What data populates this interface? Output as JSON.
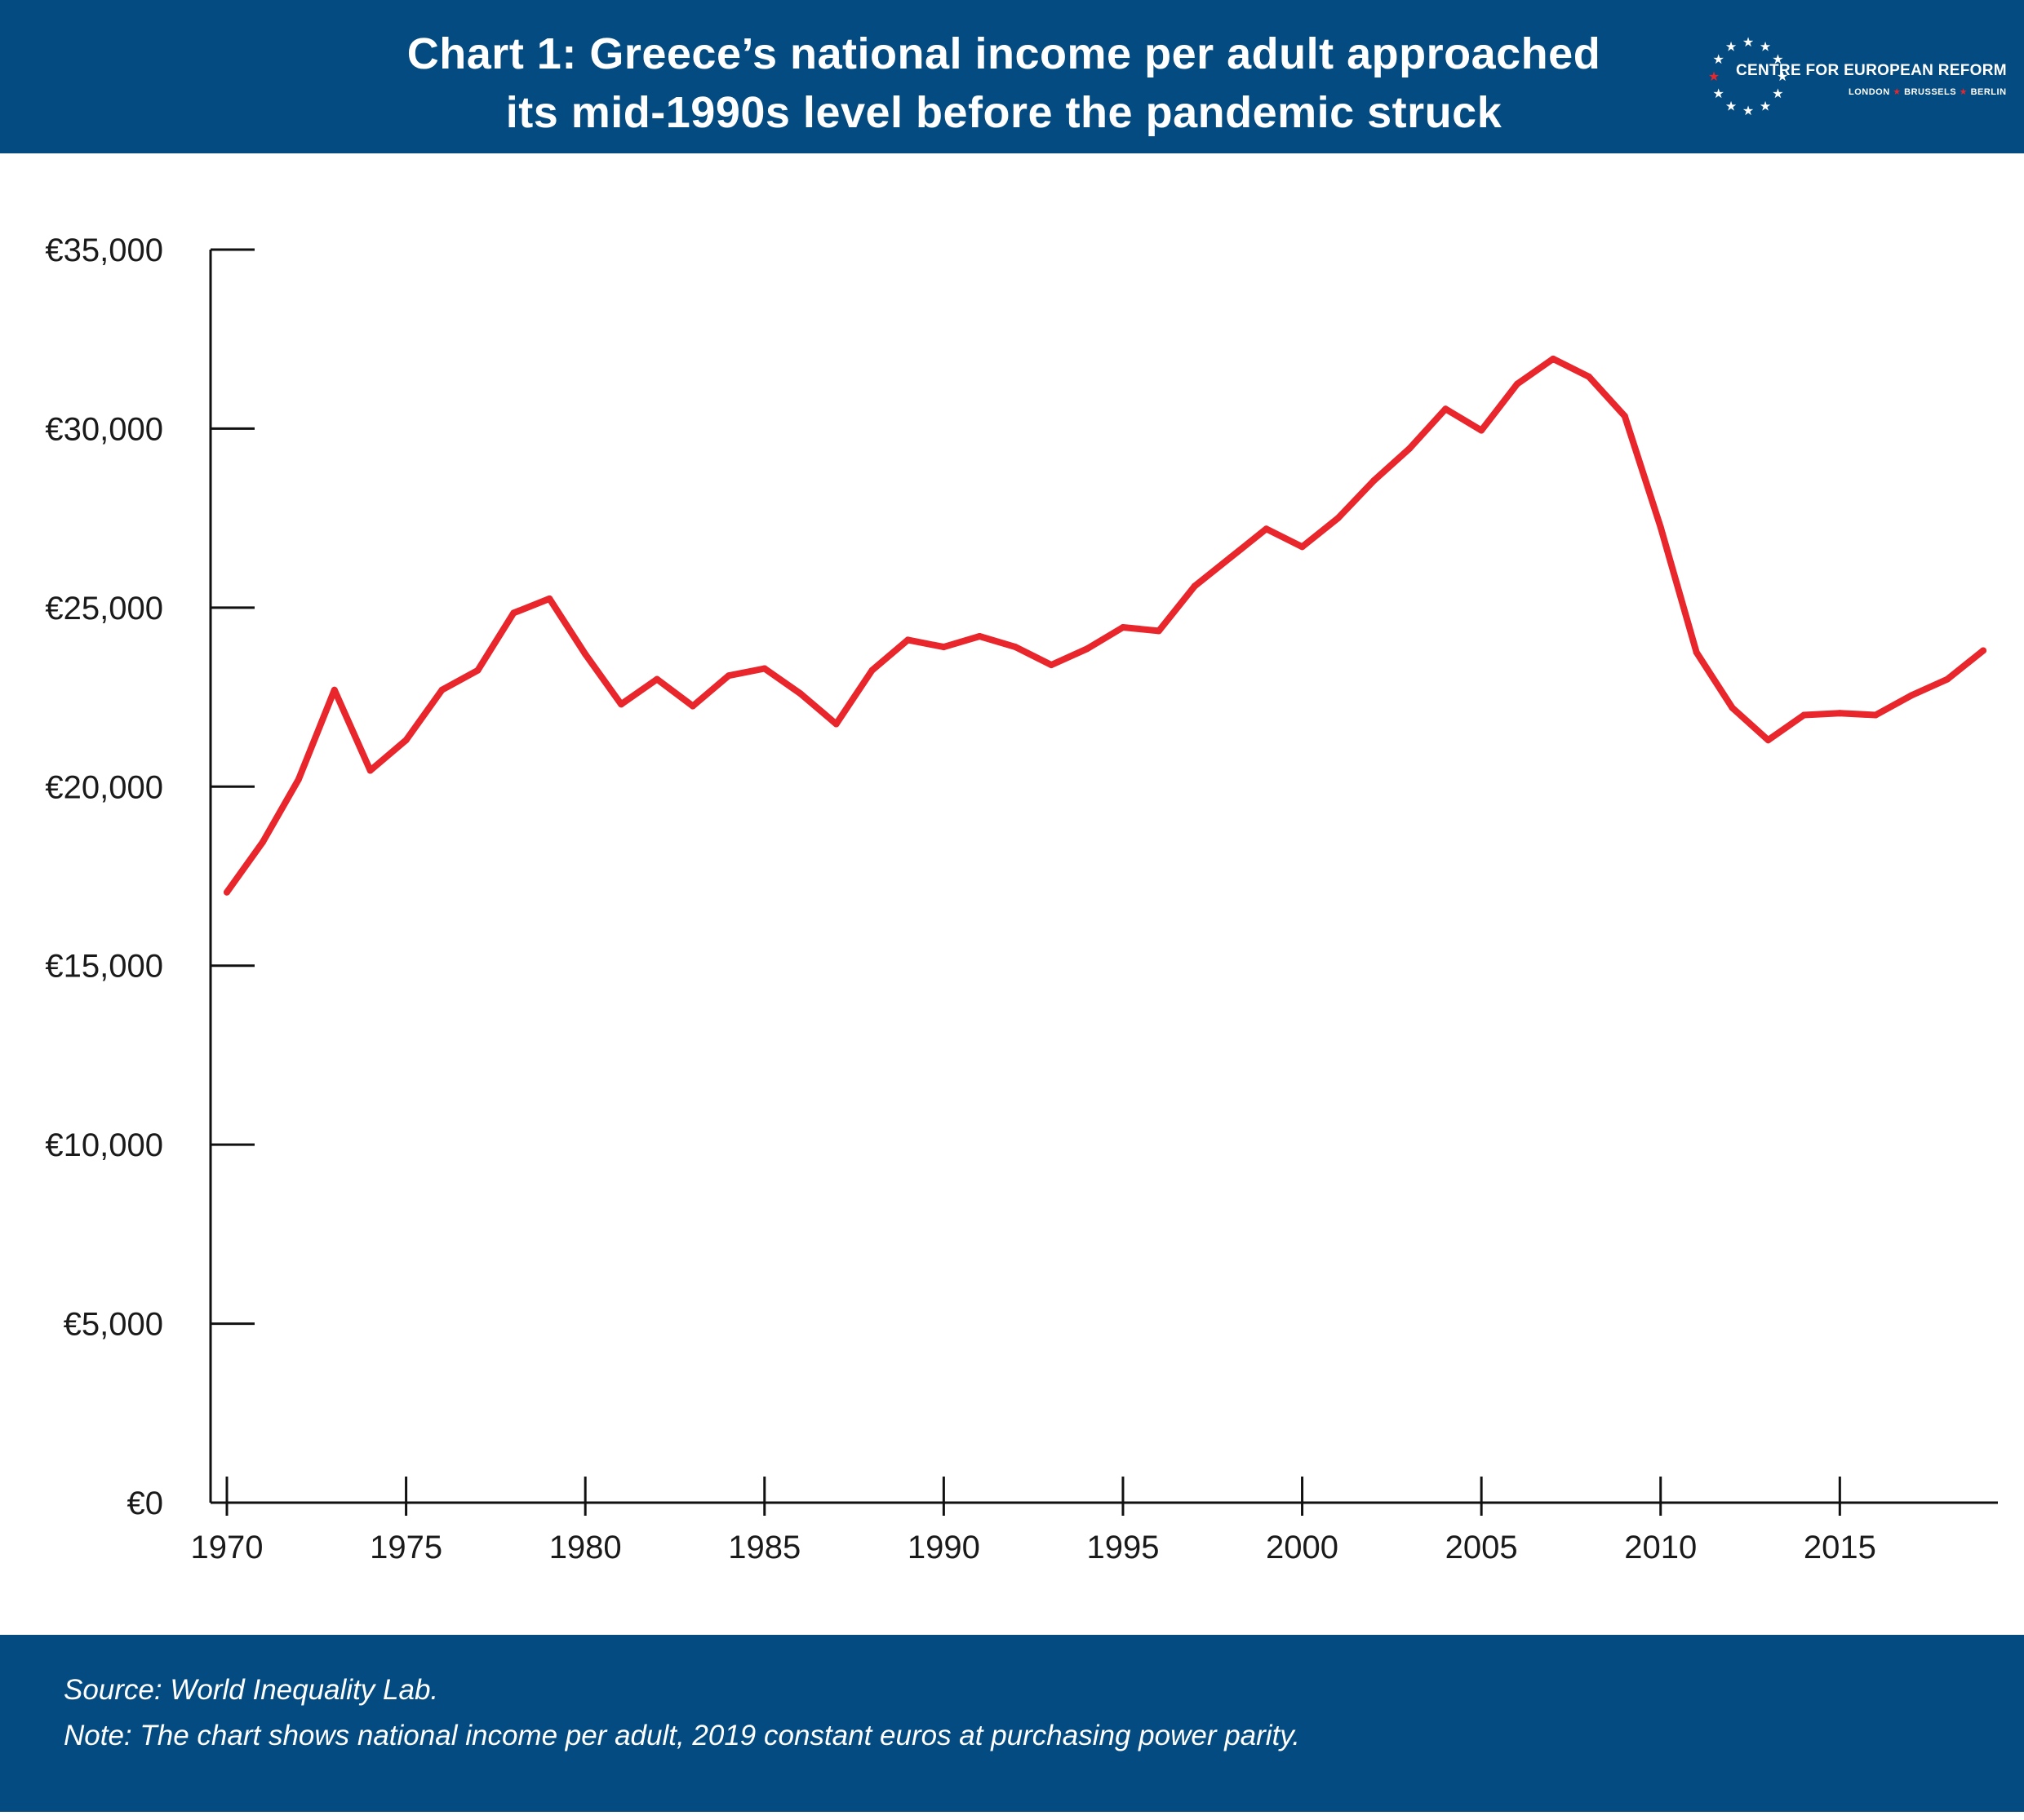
{
  "header": {
    "title_line1": "Chart 1: Greece’s national income per adult approached",
    "title_line2": "its mid-1990s level before the pandemic struck",
    "background_color": "#034b80"
  },
  "logo": {
    "name": "CENTRE FOR EUROPEAN REFORM",
    "city1": "LONDON",
    "city2": "BRUSSELS",
    "city3": "BERLIN",
    "star_color": "#ffffff",
    "accent_star_color": "#e8262b"
  },
  "footer": {
    "source": "Source: World Inequality Lab.",
    "note": "Note: The chart shows national income per adult, 2019 constant euros at purchasing power parity."
  },
  "chart_data": {
    "type": "line",
    "title": "Chart 1: Greece’s national income per adult approached its mid-1990s level before the pandemic struck",
    "xlabel": "",
    "ylabel": "",
    "x": [
      1970,
      1971,
      1972,
      1973,
      1974,
      1975,
      1976,
      1977,
      1978,
      1979,
      1980,
      1981,
      1982,
      1983,
      1984,
      1985,
      1986,
      1987,
      1988,
      1989,
      1990,
      1991,
      1992,
      1993,
      1994,
      1995,
      1996,
      1997,
      1998,
      1999,
      2000,
      2001,
      2002,
      2003,
      2004,
      2005,
      2006,
      2007,
      2008,
      2009,
      2010,
      2011,
      2012,
      2013,
      2014,
      2015,
      2016,
      2017,
      2018,
      2019
    ],
    "series": [
      {
        "color": "#e8262b",
        "values": [
          17050,
          18450,
          20200,
          22700,
          20450,
          21300,
          22700,
          23250,
          24850,
          25250,
          23700,
          22300,
          23000,
          22250,
          23100,
          23300,
          22600,
          21750,
          23250,
          24100,
          23900,
          24200,
          23900,
          23400,
          23850,
          24450,
          24350,
          25600,
          26400,
          27200,
          26700,
          27500,
          28550,
          29450,
          30550,
          29950,
          31250,
          31950,
          31450,
          30350,
          27250,
          23750,
          22200,
          21300,
          22000,
          22050,
          22000,
          22550,
          23000,
          23800
        ]
      }
    ],
    "xlim": [
      1970,
      2019
    ],
    "ylim": [
      0,
      35000
    ],
    "x_ticks": [
      1970,
      1975,
      1980,
      1985,
      1990,
      1995,
      2000,
      2005,
      2010,
      2015
    ],
    "x_tick_labels": [
      "1970",
      "1975",
      "1980",
      "1985",
      "1990",
      "1995",
      "2000",
      "2005",
      "2010",
      "2015"
    ],
    "y_ticks": [
      0,
      5000,
      10000,
      15000,
      20000,
      25000,
      30000,
      35000
    ],
    "y_tick_labels": [
      "€0",
      "€5,000",
      "€10,000",
      "€15,000",
      "€20,000",
      "€25,000",
      "€30,000",
      "€35,000"
    ],
    "grid": false,
    "legend": "none",
    "line_color": "#e8262b"
  }
}
